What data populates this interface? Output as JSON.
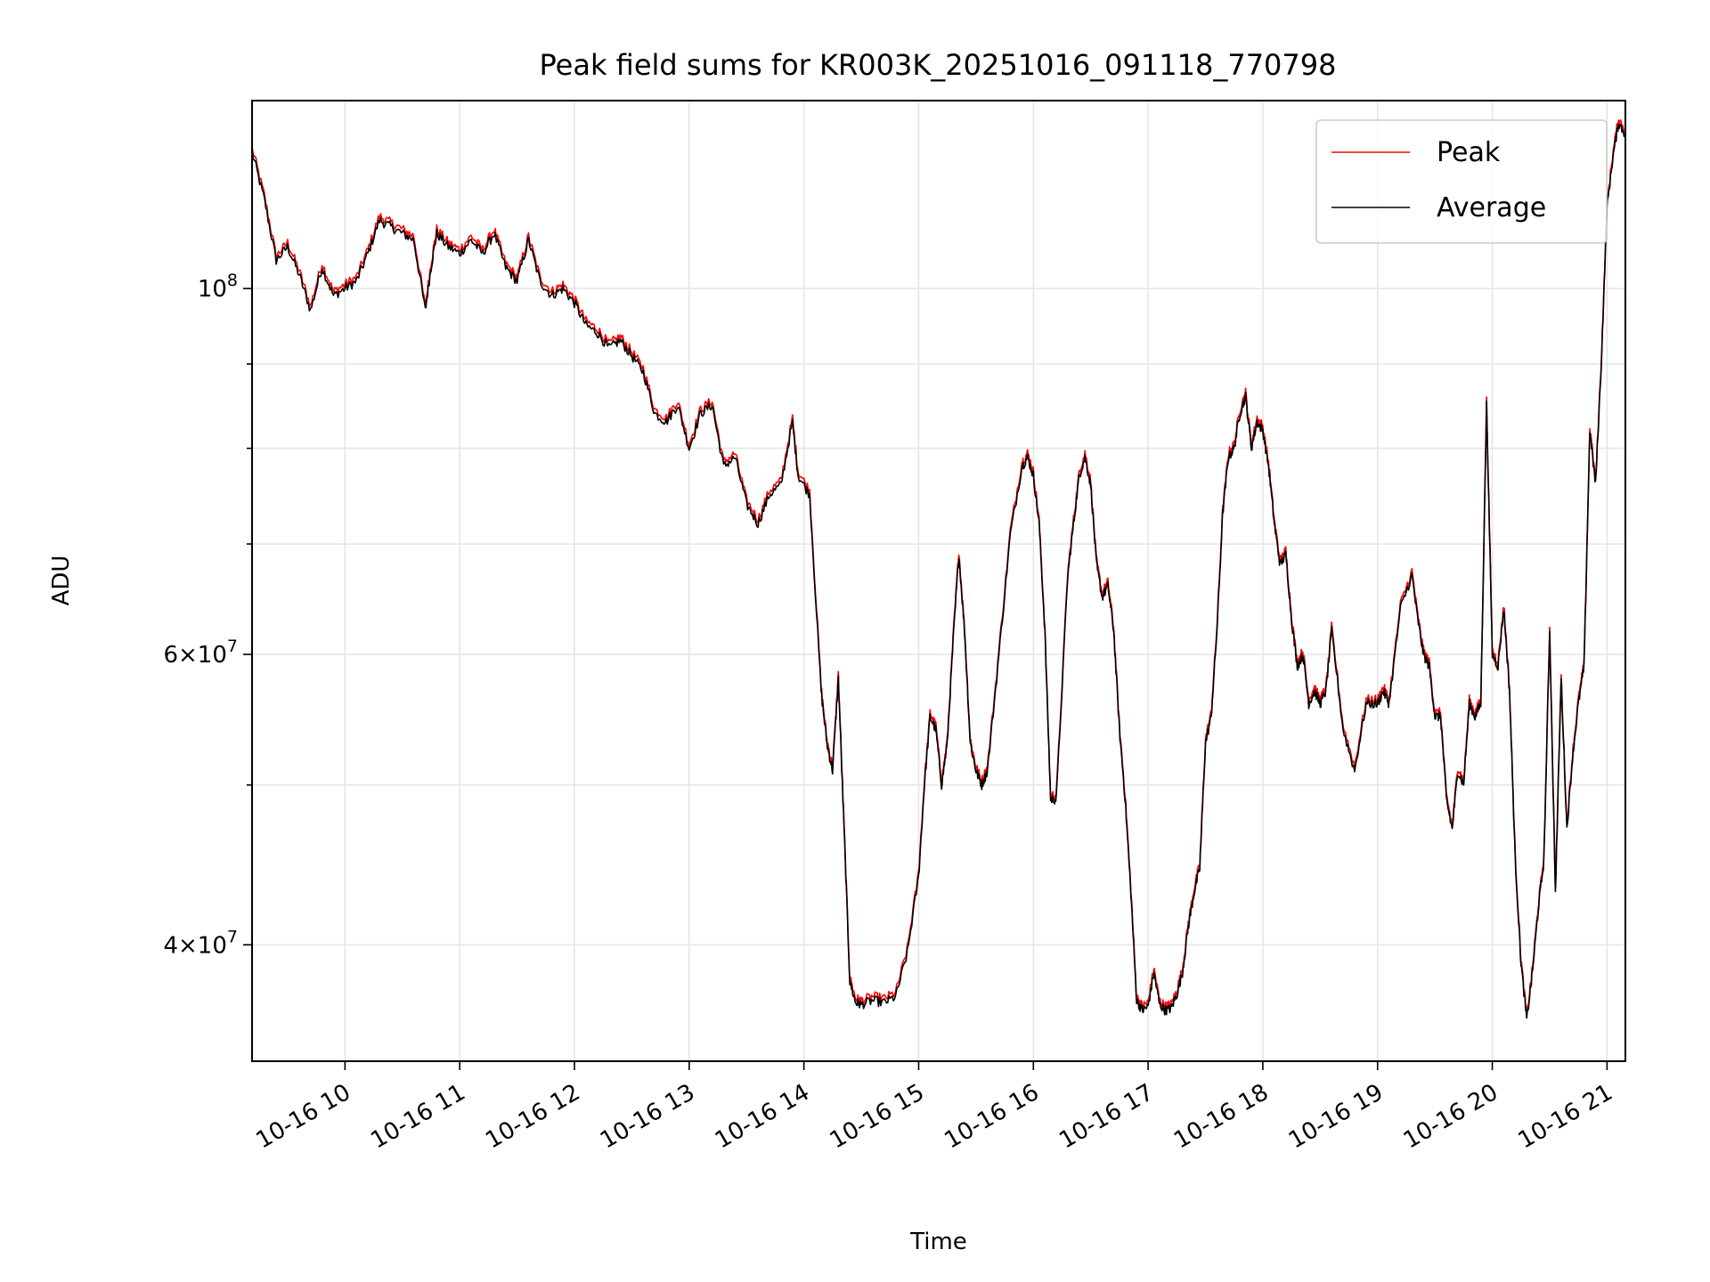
{
  "chart_data": {
    "type": "line",
    "title": "Peak field sums for KR003K_20251016_091118_770798",
    "xlabel": "Time",
    "ylabel": "ADU",
    "yscale": "log",
    "ylim": [
      34000000,
      130000000
    ],
    "xlim": [
      9.19,
      21.16
    ],
    "x_unit": "hour of 2025-10-16",
    "x_ticks": [
      {
        "value": 10,
        "label": "10-16 10"
      },
      {
        "value": 11,
        "label": "10-16 11"
      },
      {
        "value": 12,
        "label": "10-16 12"
      },
      {
        "value": 13,
        "label": "10-16 13"
      },
      {
        "value": 14,
        "label": "10-16 14"
      },
      {
        "value": 15,
        "label": "10-16 15"
      },
      {
        "value": 16,
        "label": "10-16 16"
      },
      {
        "value": 17,
        "label": "10-16 17"
      },
      {
        "value": 18,
        "label": "10-16 18"
      },
      {
        "value": 19,
        "label": "10-16 19"
      },
      {
        "value": 20,
        "label": "10-16 20"
      },
      {
        "value": 21,
        "label": "10-16 21"
      }
    ],
    "y_major_ticks": [
      {
        "value": 40000000,
        "mant": "4",
        "exp": "7"
      },
      {
        "value": 60000000,
        "mant": "6",
        "exp": "7"
      },
      {
        "value": 100000000,
        "mant": "",
        "exp": "8"
      }
    ],
    "y_minor_ticks": [
      50000000,
      70000000,
      80000000,
      90000000
    ],
    "grid": true,
    "legend_position": "top-right",
    "colors": {
      "peak": "#ff0000",
      "average": "#000000"
    },
    "series": [
      {
        "name": "Peak",
        "color": "#ff0000"
      },
      {
        "name": "Average",
        "color": "#000000"
      }
    ],
    "x": [
      9.19,
      9.3,
      9.4,
      9.5,
      9.6,
      9.7,
      9.8,
      9.9,
      10.0,
      10.1,
      10.2,
      10.3,
      10.4,
      10.5,
      10.6,
      10.7,
      10.75,
      10.8,
      10.9,
      11.0,
      11.1,
      11.2,
      11.3,
      11.4,
      11.5,
      11.6,
      11.7,
      11.8,
      11.9,
      12.0,
      12.1,
      12.2,
      12.3,
      12.4,
      12.5,
      12.6,
      12.7,
      12.8,
      12.9,
      13.0,
      13.1,
      13.2,
      13.3,
      13.4,
      13.5,
      13.6,
      13.7,
      13.8,
      13.9,
      13.95,
      14.05,
      14.15,
      14.2,
      14.25,
      14.3,
      14.35,
      14.4,
      14.45,
      14.5,
      14.6,
      14.7,
      14.8,
      14.9,
      15.0,
      15.05,
      15.1,
      15.15,
      15.2,
      15.25,
      15.3,
      15.35,
      15.4,
      15.45,
      15.5,
      15.55,
      15.6,
      15.7,
      15.8,
      15.9,
      15.95,
      16.0,
      16.05,
      16.1,
      16.15,
      16.2,
      16.3,
      16.35,
      16.4,
      16.45,
      16.5,
      16.55,
      16.6,
      16.65,
      16.7,
      16.75,
      16.8,
      16.85,
      16.9,
      16.95,
      17.0,
      17.05,
      17.1,
      17.15,
      17.2,
      17.25,
      17.3,
      17.35,
      17.4,
      17.45,
      17.5,
      17.55,
      17.6,
      17.65,
      17.7,
      17.75,
      17.8,
      17.85,
      17.9,
      17.95,
      18.0,
      18.05,
      18.1,
      18.15,
      18.2,
      18.25,
      18.3,
      18.35,
      18.4,
      18.45,
      18.5,
      18.55,
      18.6,
      18.7,
      18.8,
      18.9,
      19.0,
      19.05,
      19.1,
      19.2,
      19.3,
      19.35,
      19.4,
      19.45,
      19.5,
      19.55,
      19.6,
      19.65,
      19.7,
      19.75,
      19.8,
      19.85,
      19.9,
      19.95,
      20.0,
      20.05,
      20.1,
      20.15,
      20.2,
      20.25,
      20.3,
      20.35,
      20.4,
      20.45,
      20.5,
      20.55,
      20.6,
      20.65,
      20.7,
      20.75,
      20.8,
      20.85,
      20.9,
      20.95,
      21.0,
      21.05,
      21.1,
      21.16
    ],
    "average": [
      121000000,
      113000000,
      104000000,
      106000000,
      102000000,
      97000000,
      103000000,
      99000000,
      100000000,
      101000000,
      105000000,
      110000000,
      109000000,
      108000000,
      107000000,
      97000000,
      103000000,
      108000000,
      106000000,
      105000000,
      107000000,
      105000000,
      108000000,
      103000000,
      101000000,
      107000000,
      101000000,
      99000000,
      100000000,
      98000000,
      95000000,
      94000000,
      92000000,
      93000000,
      91000000,
      89000000,
      84000000,
      83000000,
      85000000,
      80000000,
      84000000,
      85000000,
      78000000,
      79000000,
      74000000,
      72000000,
      75000000,
      76000000,
      83000000,
      77000000,
      75000000,
      57000000,
      53000000,
      51000000,
      58000000,
      47000000,
      38000000,
      36900000,
      36800000,
      37000000,
      36900000,
      37200000,
      39500000,
      44000000,
      50000000,
      55000000,
      54000000,
      50000000,
      53000000,
      61000000,
      69000000,
      62000000,
      53000000,
      51000000,
      50000000,
      51000000,
      60000000,
      71000000,
      78000000,
      79000000,
      77000000,
      72000000,
      62000000,
      49000000,
      49000000,
      67000000,
      72000000,
      77000000,
      79000000,
      76000000,
      68000000,
      65000000,
      66000000,
      62000000,
      54000000,
      49000000,
      43000000,
      37000000,
      36500000,
      36700000,
      38500000,
      36800000,
      36500000,
      36600000,
      37300000,
      38500000,
      41000000,
      43000000,
      44500000,
      53000000,
      55000000,
      62000000,
      73000000,
      79000000,
      80000000,
      84000000,
      86000000,
      80000000,
      83000000,
      82000000,
      78000000,
      72000000,
      68000000,
      69000000,
      63000000,
      59000000,
      60000000,
      56000000,
      57000000,
      56000000,
      57000000,
      62000000,
      54000000,
      51000000,
      56000000,
      56000000,
      57000000,
      56000000,
      64000000,
      67000000,
      63000000,
      60000000,
      59000000,
      55000000,
      55000000,
      49000000,
      47000000,
      51000000,
      50000000,
      56000000,
      55000000,
      56000000,
      85000000,
      60000000,
      59000000,
      64000000,
      57000000,
      45000000,
      39000000,
      36000000,
      38500000,
      42000000,
      45000000,
      62000000,
      43000000,
      58000000,
      47000000,
      52000000,
      56000000,
      59000000,
      82000000,
      76000000,
      90000000,
      112000000,
      120000000,
      126000000,
      124000000
    ]
  }
}
